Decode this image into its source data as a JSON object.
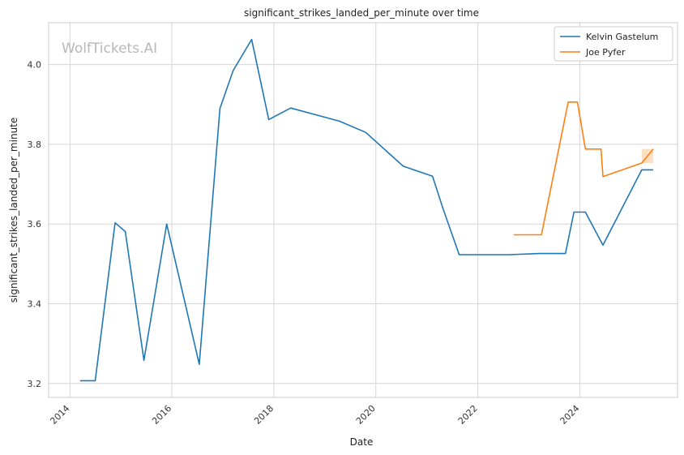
{
  "chart_data": {
    "type": "line",
    "title": "significant_strikes_landed_per_minute over time",
    "xlabel": "Date",
    "ylabel": "significant_strikes_landed_per_minute",
    "watermark": "WolfTickets.AI",
    "x_ticks": [
      "2014",
      "2016",
      "2018",
      "2020",
      "2022",
      "2024"
    ],
    "y_ticks": [
      "3.2",
      "3.4",
      "3.6",
      "3.8",
      "4.0"
    ],
    "xlim": [
      "2013-08-01",
      "2025-12-01"
    ],
    "ylim": [
      3.165,
      4.105
    ],
    "grid": true,
    "legend_position": "top-right",
    "series": [
      {
        "name": "Kelvin Gastelum",
        "color": "#1f77b4",
        "points": [
          [
            "2014-03-15",
            3.207
          ],
          [
            "2014-07-01",
            3.207
          ],
          [
            "2014-11-20",
            3.603
          ],
          [
            "2015-02-01",
            3.581
          ],
          [
            "2015-06-15",
            3.258
          ],
          [
            "2015-11-25",
            3.6
          ],
          [
            "2016-07-15",
            3.248
          ],
          [
            "2016-12-10",
            3.89
          ],
          [
            "2017-03-15",
            3.985
          ],
          [
            "2017-07-25",
            4.063
          ],
          [
            "2017-11-25",
            3.862
          ],
          [
            "2018-05-01",
            3.891
          ],
          [
            "2019-04-15",
            3.858
          ],
          [
            "2019-10-20",
            3.83
          ],
          [
            "2020-07-15",
            3.745
          ],
          [
            "2021-02-10",
            3.72
          ],
          [
            "2021-04-25",
            3.64
          ],
          [
            "2021-08-20",
            3.523
          ],
          [
            "2022-08-15",
            3.523
          ],
          [
            "2023-03-15",
            3.526
          ],
          [
            "2023-09-20",
            3.526
          ],
          [
            "2023-11-20",
            3.63
          ],
          [
            "2024-02-10",
            3.63
          ],
          [
            "2024-06-15",
            3.547
          ],
          [
            "2025-03-20",
            3.736
          ],
          [
            "2025-06-10",
            3.736
          ]
        ]
      },
      {
        "name": "Joe Pyfer",
        "color": "#ff7f0e",
        "points": [
          [
            "2022-09-15",
            3.573
          ],
          [
            "2023-04-01",
            3.573
          ],
          [
            "2023-10-10",
            3.906
          ],
          [
            "2023-12-15",
            3.906
          ],
          [
            "2024-02-10",
            3.788
          ],
          [
            "2024-06-01",
            3.788
          ],
          [
            "2024-06-15",
            3.719
          ],
          [
            "2025-03-20",
            3.753
          ],
          [
            "2025-06-10",
            3.788
          ]
        ]
      }
    ]
  }
}
